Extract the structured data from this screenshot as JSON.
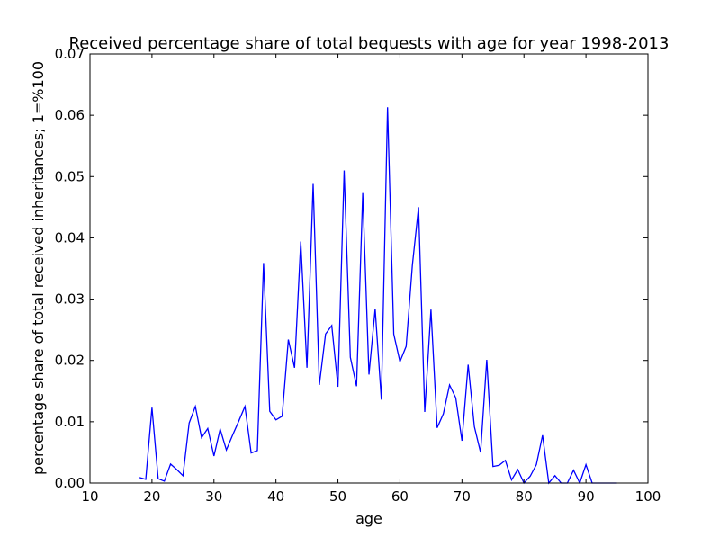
{
  "chart_data": {
    "type": "line",
    "title": "Received percentage share of total bequests with age for year 1998-2013",
    "xlabel": "age",
    "ylabel": "percentage share of total received inheritances; 1=%100",
    "xlim": [
      10,
      100
    ],
    "ylim": [
      0,
      0.07
    ],
    "xticks": [
      "10",
      "20",
      "30",
      "40",
      "50",
      "60",
      "70",
      "80",
      "90",
      "100"
    ],
    "yticks": [
      "0.00",
      "0.01",
      "0.02",
      "0.03",
      "0.04",
      "0.05",
      "0.06",
      "0.07"
    ],
    "grid": false,
    "line_color": "#0000ff",
    "series": [
      {
        "x": [
          18,
          19,
          20,
          21,
          22,
          23,
          24,
          25,
          26,
          27,
          28,
          29,
          30,
          31,
          32,
          33,
          34,
          35,
          36,
          37,
          38,
          39,
          40,
          41,
          42,
          43,
          44,
          45,
          46,
          47,
          48,
          49,
          50,
          51,
          52,
          53,
          54,
          55,
          56,
          57,
          58,
          59,
          60,
          61,
          62,
          63,
          64,
          65,
          66,
          67,
          68,
          69,
          70,
          71,
          72,
          73,
          74,
          75,
          76,
          77,
          78,
          79,
          80,
          81,
          82,
          83,
          84,
          85,
          86,
          87,
          88,
          89,
          90,
          91,
          92,
          93,
          94,
          95
        ],
        "y": [
          0.0009,
          0.0006,
          0.0123,
          0.0007,
          0.0003,
          0.0031,
          0.0022,
          0.0012,
          0.0098,
          0.0125,
          0.0074,
          0.0089,
          0.0044,
          0.0088,
          0.0054,
          0.0078,
          0.0101,
          0.0125,
          0.0049,
          0.0053,
          0.0359,
          0.0117,
          0.0103,
          0.0109,
          0.0234,
          0.0188,
          0.0394,
          0.0188,
          0.0488,
          0.016,
          0.0243,
          0.0257,
          0.0157,
          0.051,
          0.0205,
          0.0158,
          0.0473,
          0.0177,
          0.0284,
          0.0136,
          0.0613,
          0.0243,
          0.0198,
          0.0223,
          0.0355,
          0.045,
          0.0116,
          0.0283,
          0.009,
          0.0113,
          0.016,
          0.0139,
          0.0069,
          0.0193,
          0.0092,
          0.005,
          0.0201,
          0.0027,
          0.0029,
          0.0037,
          0.0005,
          0.0022,
          0.0,
          0.0011,
          0.003,
          0.0078,
          0.0,
          0.0012,
          0.0,
          0.0,
          0.0021,
          0.0,
          0.003,
          0.0,
          0.0,
          0.0,
          0.0,
          0.0
        ]
      }
    ]
  }
}
